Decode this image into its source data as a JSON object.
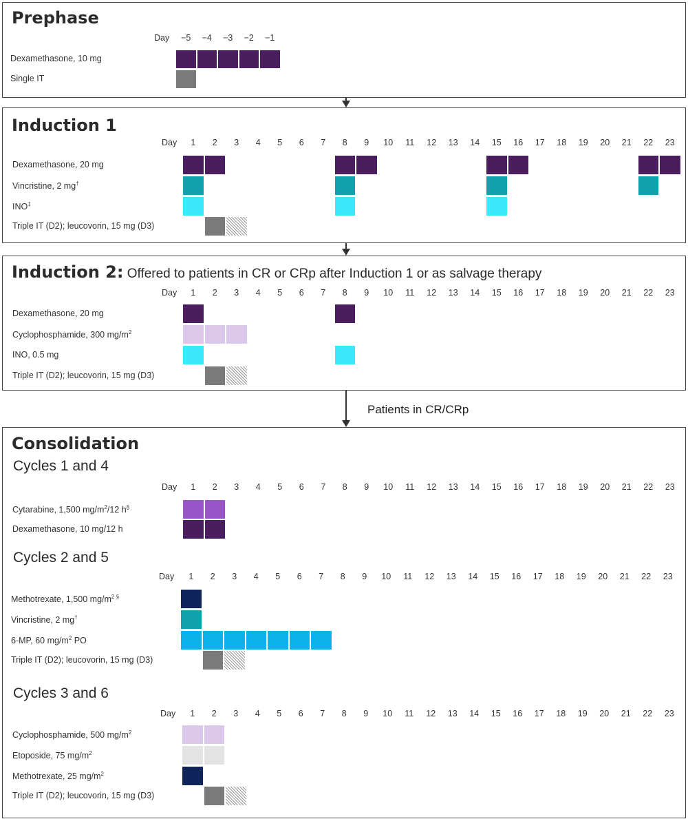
{
  "phases": {
    "prephase": {
      "title": "Prephase",
      "day_label": "Day",
      "days": [
        "−5",
        "−4",
        "−3",
        "−2",
        "−1"
      ],
      "rows": [
        {
          "label": "Dexamethasone, 10 mg",
          "color": "dex",
          "days": [
            1,
            2,
            3,
            4,
            5
          ]
        },
        {
          "label": "Single IT",
          "color": "it",
          "days": [
            1
          ]
        }
      ]
    },
    "induction1": {
      "title": "Induction 1",
      "day_label": "Day",
      "days": [
        "1",
        "2",
        "3",
        "4",
        "5",
        "6",
        "7",
        "8",
        "9",
        "10",
        "11",
        "12",
        "13",
        "14",
        "15",
        "16",
        "17",
        "18",
        "19",
        "20",
        "21",
        "22",
        "23"
      ],
      "rows": [
        {
          "label": "Dexamethasone, 20 mg",
          "color": "dex",
          "days": [
            1,
            2,
            8,
            9,
            15,
            16,
            22,
            23
          ]
        },
        {
          "label": "Vincristine, 2 mg",
          "sup": "†",
          "color": "vin",
          "days": [
            1,
            8,
            15,
            22
          ]
        },
        {
          "label": "INO",
          "sup": "‡",
          "color": "ino",
          "days": [
            1,
            8,
            15
          ]
        },
        {
          "label": "Triple IT (D2); leucovorin, 15 mg (D3)",
          "color": "it",
          "days": [
            2
          ],
          "hatch": [
            3
          ]
        }
      ]
    },
    "induction2": {
      "title": "Induction 2:",
      "subtitle": " Offered to patients in CR or CRp after Induction 1 or as salvage therapy",
      "day_label": "Day",
      "days": [
        "1",
        "2",
        "3",
        "4",
        "5",
        "6",
        "7",
        "8",
        "9",
        "10",
        "11",
        "12",
        "13",
        "14",
        "15",
        "16",
        "17",
        "18",
        "19",
        "20",
        "21",
        "22",
        "23"
      ],
      "rows": [
        {
          "label": "Dexamethasone, 20 mg",
          "color": "dex",
          "days": [
            1,
            8
          ]
        },
        {
          "label": "Cyclophosphamide, 300 mg/m",
          "sup": "2",
          "color": "cyc",
          "days": [
            1,
            2,
            3
          ]
        },
        {
          "label": "INO, 0.5 mg",
          "color": "ino",
          "days": [
            1,
            8
          ]
        },
        {
          "label": "Triple IT (D2); leucovorin, 15 mg (D3)",
          "color": "it",
          "days": [
            2
          ],
          "hatch": [
            3
          ]
        }
      ]
    },
    "consolidation": {
      "title": "Consolidation",
      "cycles": [
        {
          "title": "Cycles 1 and 4",
          "day_label": "Day",
          "days": [
            "1",
            "2",
            "3",
            "4",
            "5",
            "6",
            "7",
            "8",
            "9",
            "10",
            "11",
            "12",
            "13",
            "14",
            "15",
            "16",
            "17",
            "18",
            "19",
            "20",
            "21",
            "22",
            "23"
          ],
          "rows": [
            {
              "label": "Cytarabine, 1,500 mg/m",
              "sup": "2",
              "tail": "/12 h",
              "sup2": "§",
              "color": "cyt",
              "days": [
                1,
                2
              ]
            },
            {
              "label": "Dexamethasone, 10 mg/12 h",
              "color": "dex",
              "days": [
                1,
                2
              ]
            }
          ]
        },
        {
          "title": "Cycles 2 and 5",
          "day_label": "Day",
          "days": [
            "1",
            "2",
            "3",
            "4",
            "5",
            "6",
            "7",
            "8",
            "9",
            "10",
            "11",
            "12",
            "13",
            "14",
            "15",
            "16",
            "17",
            "18",
            "19",
            "20",
            "21",
            "22",
            "23"
          ],
          "rows": [
            {
              "label": "Methotrexate, 1,500 mg/m",
              "sup": "2 §",
              "color": "mtx",
              "days": [
                1
              ]
            },
            {
              "label": "Vincristine, 2 mg",
              "sup": "†",
              "color": "vin",
              "days": [
                1
              ]
            },
            {
              "label": "6-MP, 60 mg/m",
              "sup": "2",
              "tail": " PO",
              "color": "mp",
              "days": [
                1,
                2,
                3,
                4,
                5,
                6,
                7
              ]
            },
            {
              "label": "Triple IT (D2); leucovorin, 15 mg (D3)",
              "color": "it",
              "days": [
                2
              ],
              "hatch": [
                3
              ]
            }
          ]
        },
        {
          "title": "Cycles 3 and 6",
          "day_label": "Day",
          "days": [
            "1",
            "2",
            "3",
            "4",
            "5",
            "6",
            "7",
            "8",
            "9",
            "10",
            "11",
            "12",
            "13",
            "14",
            "15",
            "16",
            "17",
            "18",
            "19",
            "20",
            "21",
            "22",
            "23"
          ],
          "rows": [
            {
              "label": "Cyclophosphamide, 500 mg/m",
              "sup": "2",
              "color": "cyc",
              "days": [
                1,
                2
              ]
            },
            {
              "label": "Etoposide, 75 mg/m",
              "sup": "2",
              "color": "eto",
              "days": [
                1,
                2
              ]
            },
            {
              "label": "Methotrexate, 25 mg/m",
              "sup": "2",
              "color": "mtx",
              "days": [
                1
              ]
            },
            {
              "label": "Triple IT (D2); leucovorin, 15 mg (D3)",
              "color": "it",
              "days": [
                2
              ],
              "hatch": [
                3
              ]
            }
          ]
        }
      ]
    }
  },
  "arrow_note": "Patients in CR/CRp",
  "colors": {
    "dex": "#4a1e5e",
    "it": "#7a7a7a",
    "vin": "#11a3ad",
    "ino": "#3be9ff",
    "cyc": "#dcc8ea",
    "cyt": "#9955c8",
    "mtx": "#0f245a",
    "mp": "#0bb2ec",
    "eto": "#e3e3e3"
  }
}
